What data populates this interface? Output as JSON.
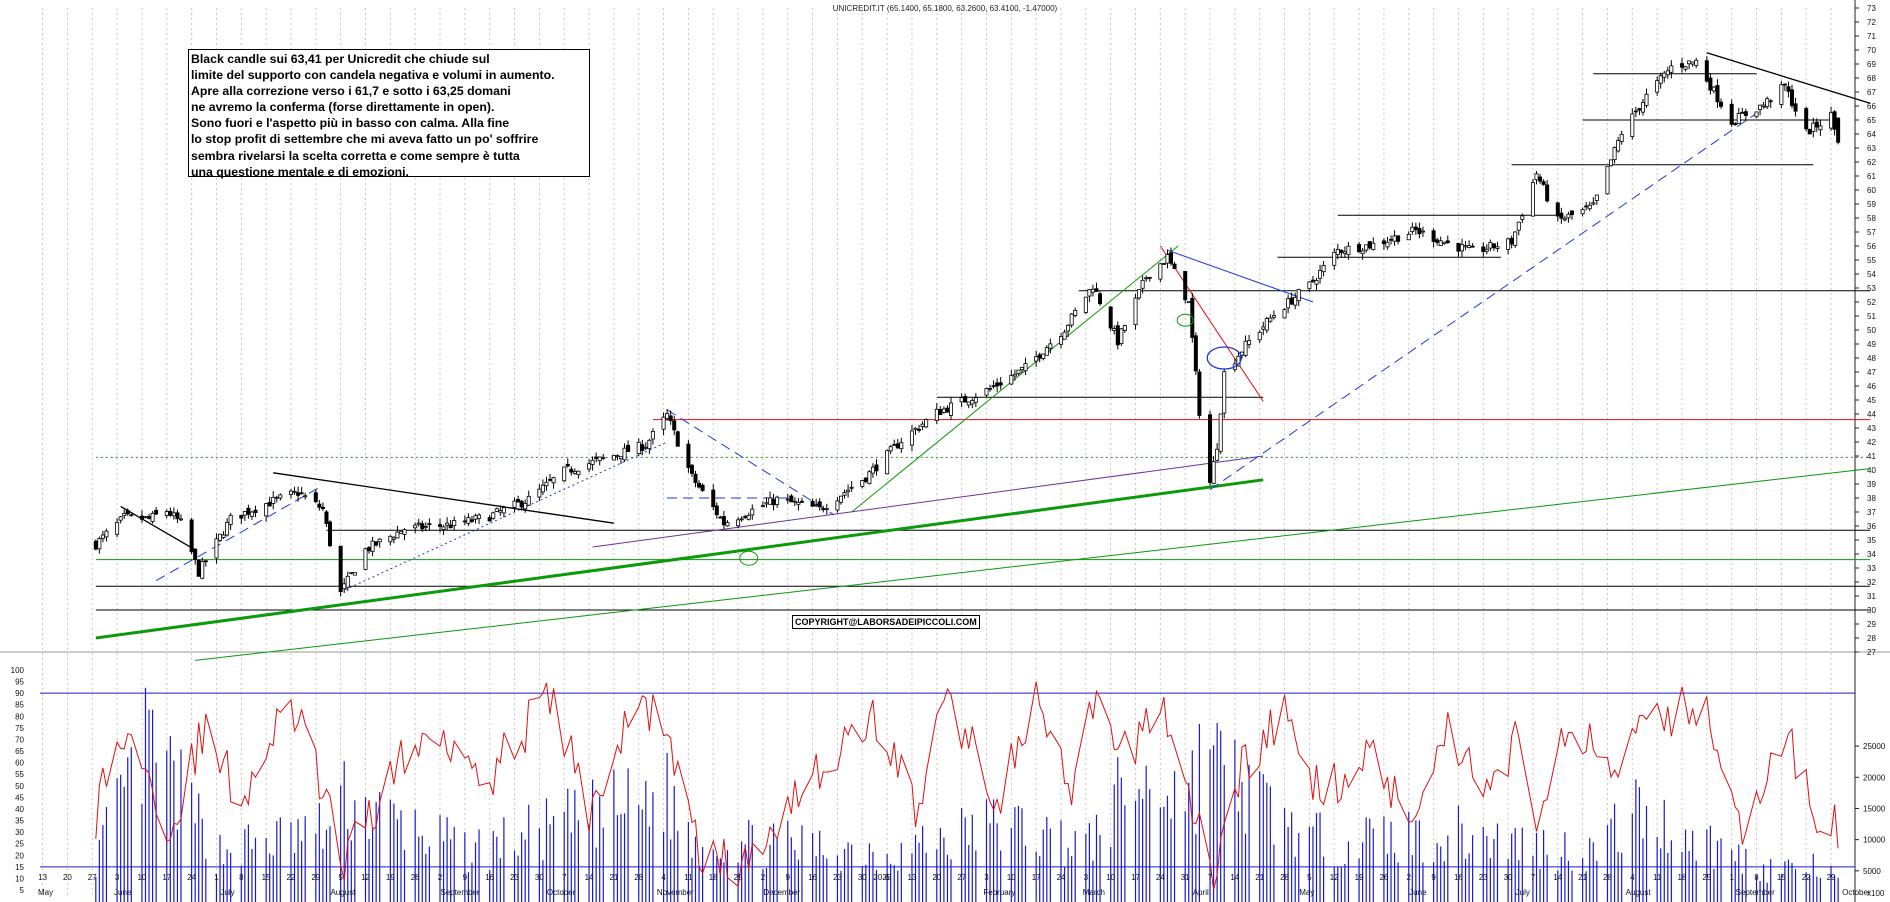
{
  "header": "UNICREDIT.IT (65.1400, 65.1800, 63.2600, 63.4100, -1.47000)",
  "note": {
    "lines": [
      "Black candle sui 63,41 per Unicredit che chiude sul",
      "limite del supporto con candela negativa e volumi in aumento.",
      "Apre alla correzione verso i 61,7 e sotto i 63,25 domani",
      "ne avremo la conferma (forse direttamente in open).",
      "Sono fuori e l'aspetto più in basso con calma. Alla fine",
      "lo stop profit di settembre che mi aveva fatto un po' soffrire",
      "sembra rivelarsi la scelta corretta e come sempre è tutta",
      "una questione mentale e di emozioni."
    ]
  },
  "copyright": "COPYRIGHT@LABORSADEIPICCOLI.COM",
  "colors": {
    "up_candle": "#ffffff",
    "down_candle": "#000000",
    "oscillator": "#e01010",
    "volume": "#1a1acc",
    "resistance": "#e01010",
    "trend_green": "#0a9a0a",
    "trend_blue": "#1a3be0",
    "trend_purple": "#7030a0"
  },
  "chart_data": [
    {
      "type": "candlestick",
      "title": "UNICREDIT.IT (65.1400, 65.1800, 63.2600, 63.4100, -1.47000)",
      "ylim": [
        27,
        73
      ],
      "y_ticks": [
        27,
        28,
        29,
        30,
        31,
        32,
        33,
        34,
        35,
        36,
        37,
        38,
        39,
        40,
        41,
        42,
        43,
        44,
        45,
        46,
        47,
        48,
        49,
        50,
        51,
        52,
        53,
        54,
        55,
        56,
        57,
        58,
        59,
        60,
        61,
        62,
        63,
        64,
        65,
        66,
        67,
        68,
        69,
        70,
        71,
        72,
        73
      ],
      "last_bar": {
        "open": 65.14,
        "high": 65.18,
        "low": 63.26,
        "close": 63.41,
        "change": -1.47
      },
      "series": [
        {
          "kind": "close_path",
          "x": [
            "2024-05-28",
            "2024-06-05",
            "2024-06-12",
            "2024-06-17",
            "2024-06-21",
            "2024-06-26",
            "2024-07-05",
            "2024-07-15",
            "2024-07-24",
            "2024-07-31",
            "2024-08-05",
            "2024-08-12",
            "2024-08-23",
            "2024-09-06",
            "2024-09-16",
            "2024-09-27",
            "2024-10-07",
            "2024-10-18",
            "2024-10-30",
            "2024-11-05",
            "2024-11-12",
            "2024-11-21",
            "2024-11-26",
            "2024-12-06",
            "2024-12-18",
            "2024-12-31",
            "2025-01-10",
            "2025-01-20",
            "2025-02-04",
            "2025-02-14",
            "2025-02-25",
            "2025-03-05",
            "2025-03-12",
            "2025-03-20",
            "2025-03-26",
            "2025-04-01",
            "2025-04-04",
            "2025-04-07",
            "2025-04-09",
            "2025-04-11",
            "2025-04-17",
            "2025-04-25",
            "2025-05-05",
            "2025-05-13",
            "2025-05-23",
            "2025-06-04",
            "2025-06-13",
            "2025-06-20",
            "2025-07-01",
            "2025-07-08",
            "2025-07-14",
            "2025-07-24",
            "2025-08-01",
            "2025-08-08",
            "2025-08-15",
            "2025-08-22",
            "2025-09-01",
            "2025-09-10",
            "2025-09-16",
            "2025-09-22",
            "2025-09-29",
            "2025-10-01"
          ],
          "close": [
            34.7,
            36.6,
            36.5,
            37.1,
            36.2,
            32.7,
            36.5,
            37.6,
            38.4,
            37.2,
            31.2,
            34.3,
            35.8,
            36.1,
            36.7,
            37.9,
            39.9,
            40.8,
            41.8,
            43.9,
            39.5,
            36.2,
            36.8,
            37.9,
            37.2,
            39.5,
            42.1,
            44.1,
            45.8,
            47.3,
            50.1,
            53.2,
            49.2,
            53.8,
            55.2,
            51.9,
            44.2,
            39.1,
            41.8,
            46.9,
            48.9,
            51.1,
            53.2,
            55.7,
            56.1,
            57.1,
            56.2,
            55.6,
            56.3,
            61.2,
            57.8,
            58.8,
            64.1,
            66.7,
            68.8,
            69.2,
            64.9,
            66.1,
            67.4,
            64.1,
            65.3,
            63.4
          ]
        }
      ],
      "lines": [
        {
          "name": "resistance_43_6",
          "from": [
            "2024-11-01",
            43.6
          ],
          "to": [
            "2025-10-10",
            43.6
          ],
          "color": "red"
        },
        {
          "name": "dotted_40_9",
          "from": [
            "2024-05-28",
            40.9
          ],
          "to": [
            "2025-10-10",
            40.9
          ],
          "color": "green",
          "style": "dotted"
        },
        {
          "name": "support_35_7",
          "from": [
            "2024-08-01",
            35.7
          ],
          "to": [
            "2025-10-10",
            35.7
          ],
          "color": "black"
        },
        {
          "name": "support_33_6",
          "from": [
            "2024-05-28",
            33.6
          ],
          "to": [
            "2025-10-10",
            33.6
          ],
          "color": "green"
        },
        {
          "name": "support_31_7",
          "from": [
            "2024-05-28",
            31.7
          ],
          "to": [
            "2025-10-10",
            31.7
          ],
          "color": "black"
        },
        {
          "name": "support_30",
          "from": [
            "2024-05-28",
            30.0
          ],
          "to": [
            "2025-10-10",
            30.0
          ],
          "color": "black"
        },
        {
          "name": "level_52_8",
          "from": [
            "2025-03-01",
            52.8
          ],
          "to": [
            "2025-10-10",
            52.8
          ],
          "color": "black"
        },
        {
          "name": "level_45_2",
          "from": [
            "2025-01-20",
            45.2
          ],
          "to": [
            "2025-04-22",
            45.2
          ],
          "color": "black"
        },
        {
          "name": "level_55_2",
          "from": [
            "2025-04-26",
            55.2
          ],
          "to": [
            "2025-06-28",
            55.2
          ],
          "color": "black"
        },
        {
          "name": "level_58_2",
          "from": [
            "2025-05-13",
            58.2
          ],
          "to": [
            "2025-07-14",
            58.2
          ],
          "color": "black"
        },
        {
          "name": "level_61_8",
          "from": [
            "2025-07-01",
            61.8
          ],
          "to": [
            "2025-09-24",
            61.8
          ],
          "color": "black"
        },
        {
          "name": "level_65_0",
          "from": [
            "2025-07-21",
            65.0
          ],
          "to": [
            "2025-10-01",
            65.0
          ],
          "color": "black"
        },
        {
          "name": "level_68_3",
          "from": [
            "2025-07-24",
            68.3
          ],
          "to": [
            "2025-09-08",
            68.3
          ],
          "color": "black"
        },
        {
          "name": "bold_uptrend",
          "from": [
            "2024-05-28",
            28.0
          ],
          "to": [
            "2025-04-22",
            39.3
          ],
          "color": "green",
          "style": "bold"
        },
        {
          "name": "long_uptrend",
          "from": [
            "2024-06-25",
            26.4
          ],
          "to": [
            "2025-10-10",
            40.1
          ],
          "color": "green"
        },
        {
          "name": "purple_uptrend",
          "from": [
            "2024-10-15",
            34.5
          ],
          "to": [
            "2025-04-22",
            41.0
          ],
          "color": "purple"
        },
        {
          "name": "green_uptrend_2",
          "from": [
            "2024-12-27",
            37.0
          ],
          "to": [
            "2025-03-29",
            56.0
          ],
          "color": "green"
        },
        {
          "name": "blue_dash_uptrend",
          "from": [
            "2025-04-07",
            38.6
          ],
          "to": [
            "2025-09-11",
            66.0
          ],
          "color": "blue",
          "style": "dashed"
        },
        {
          "name": "blue_dash_jul",
          "from": [
            "2024-06-14",
            32.1
          ],
          "to": [
            "2024-07-31",
            38.9
          ],
          "color": "blue",
          "style": "dashed"
        },
        {
          "name": "blue_dash_nov",
          "from": [
            "2024-11-05",
            44.3
          ],
          "to": [
            "2024-12-22",
            36.8
          ],
          "color": "blue",
          "style": "dashed"
        },
        {
          "name": "blue_dash_nov_flat",
          "from": [
            "2024-11-05",
            38.0
          ],
          "to": [
            "2024-12-09",
            38.0
          ],
          "color": "blue",
          "style": "dashed"
        },
        {
          "name": "blue_dotted_aug_nov",
          "from": [
            "2024-08-05",
            31.3
          ],
          "to": [
            "2024-11-05",
            42.0
          ],
          "color": "blue",
          "style": "dotted"
        },
        {
          "name": "downtrend_jun",
          "from": [
            "2024-06-04",
            37.4
          ],
          "to": [
            "2024-06-25",
            34.3
          ],
          "color": "black"
        },
        {
          "name": "downtrend_aug_oct",
          "from": [
            "2024-07-17",
            39.8
          ],
          "to": [
            "2024-10-21",
            36.2
          ],
          "color": "black"
        },
        {
          "name": "downtrend_sep",
          "from": [
            "2025-08-25",
            69.8
          ],
          "to": [
            "2025-10-10",
            66.2
          ],
          "color": "black"
        },
        {
          "name": "red_down_mar_apr",
          "from": [
            "2025-03-24",
            56.0
          ],
          "to": [
            "2025-04-22",
            44.9
          ],
          "color": "red"
        },
        {
          "name": "blue_down_mar_may",
          "from": [
            "2025-03-26",
            55.7
          ],
          "to": [
            "2025-05-06",
            52.0
          ],
          "color": "blue"
        }
      ]
    },
    {
      "type": "line",
      "ylim": [
        0,
        105
      ],
      "y_ticks": [
        5,
        10,
        15,
        20,
        25,
        30,
        35,
        40,
        45,
        50,
        55,
        60,
        65,
        70,
        75,
        80,
        85,
        90,
        95,
        100
      ],
      "levels": [
        90,
        15
      ],
      "series": [
        {
          "x": [
            "2024-05-28",
            "2024-06-03",
            "2024-06-12",
            "2024-06-17",
            "2024-06-27",
            "2024-07-08",
            "2024-07-22",
            "2024-08-01",
            "2024-08-05",
            "2024-08-19",
            "2024-09-02",
            "2024-09-16",
            "2024-10-03",
            "2024-10-14",
            "2024-10-28",
            "2024-11-04",
            "2024-11-13",
            "2024-11-26",
            "2024-12-09",
            "2024-12-20",
            "2025-01-03",
            "2025-01-14",
            "2025-01-23",
            "2025-02-06",
            "2025-02-17",
            "2025-02-27",
            "2025-03-06",
            "2025-03-13",
            "2025-03-24",
            "2025-04-03",
            "2025-04-08",
            "2025-04-16",
            "2025-04-28",
            "2025-05-08",
            "2025-05-20",
            "2025-06-03",
            "2025-06-13",
            "2025-06-24",
            "2025-07-03",
            "2025-07-09",
            "2025-07-18",
            "2025-07-30",
            "2025-08-07",
            "2025-08-14",
            "2025-08-21",
            "2025-08-28",
            "2025-09-05",
            "2025-09-10",
            "2025-09-17",
            "2025-09-25",
            "2025-10-01"
          ],
          "values": [
            38,
            70,
            65,
            25,
            73,
            45,
            85,
            45,
            12,
            55,
            75,
            55,
            88,
            40,
            85,
            80,
            25,
            12,
            45,
            60,
            80,
            40,
            88,
            45,
            85,
            45,
            88,
            60,
            88,
            35,
            8,
            60,
            80,
            45,
            65,
            40,
            75,
            50,
            70,
            35,
            80,
            55,
            90,
            80,
            85,
            75,
            20,
            55,
            70,
            35,
            30
          ]
        },
        {
          "kind": "volume",
          "unit": "",
          "right_ticks": [
            5000,
            10000,
            15000,
            20000,
            25000
          ],
          "x": [
            "2024-05-28",
            "2024-06-12",
            "2024-07-01",
            "2024-08-02",
            "2024-08-05",
            "2024-09-10",
            "2024-11-05",
            "2024-11-12",
            "2025-01-08",
            "2025-02-07",
            "2025-03-04",
            "2025-03-14",
            "2025-04-03",
            "2025-04-07",
            "2025-04-08",
            "2025-04-10",
            "2025-05-05",
            "2025-06-20",
            "2025-07-07",
            "2025-07-24",
            "2025-08-05",
            "2025-09-03",
            "2025-09-10",
            "2025-09-26",
            "2025-09-30"
          ],
          "values": [
            8000,
            28000,
            9000,
            13000,
            18000,
            9000,
            19000,
            11000,
            9000,
            14000,
            10000,
            20000,
            21000,
            34000,
            32000,
            23000,
            11000,
            12000,
            10000,
            9000,
            16000,
            8000,
            6000,
            6000,
            4000
          ]
        }
      ]
    }
  ],
  "x_axis": {
    "year_label": "2025",
    "months": [
      "May",
      "June",
      "July",
      "August",
      "September",
      "October",
      "November",
      "December",
      "February",
      "March",
      "April",
      "May",
      "June",
      "July",
      "August",
      "September",
      "October"
    ],
    "day_ticks": [
      "6",
      "13",
      "20",
      "27",
      "3",
      "10",
      "17",
      "24",
      "1",
      "8",
      "15",
      "22",
      "29",
      "5",
      "12",
      "19",
      "26",
      "2",
      "9",
      "16",
      "23",
      "30",
      "7",
      "14",
      "21",
      "28",
      "4",
      "11",
      "18",
      "25",
      "2",
      "9",
      "16",
      "23",
      "30",
      "6",
      "13",
      "20",
      "27",
      "3",
      "10",
      "17",
      "24",
      "3",
      "10",
      "17",
      "24",
      "31",
      "7",
      "14",
      "21",
      "28",
      "5",
      "12",
      "19",
      "26",
      "2",
      "9",
      "16",
      "23",
      "30",
      "7",
      "14",
      "21",
      "28",
      "4",
      "11",
      "18",
      "25",
      "1",
      "8",
      "15",
      "22",
      "29",
      "6",
      "13",
      "20",
      "27",
      "3",
      "10",
      "17",
      "24",
      "31",
      "8",
      "15",
      "22",
      "29",
      "6",
      "13"
    ]
  },
  "volume_unit_label": "x100"
}
